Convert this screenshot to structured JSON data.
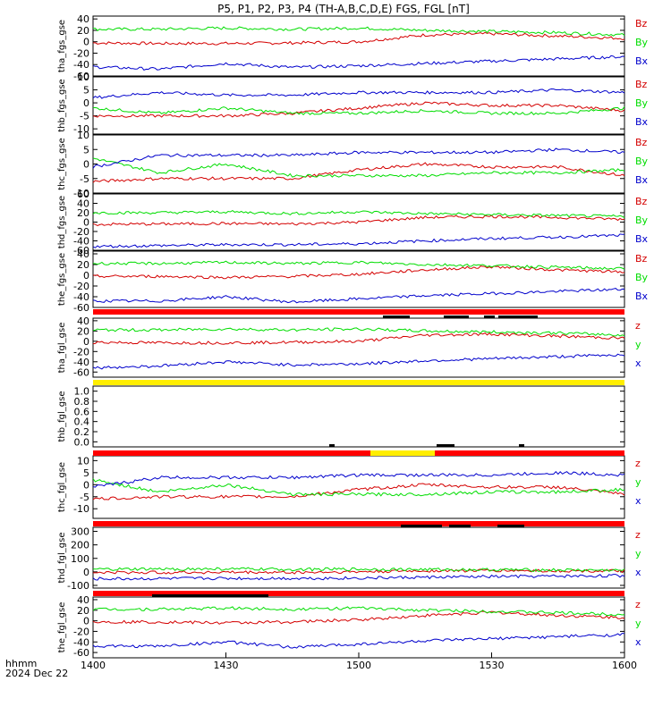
{
  "title": "P5, P1, P2, P3, P4 (TH-A,B,C,D,E) FGS, FGL [nT]",
  "footer": {
    "row1": "hhmm",
    "row2": "2024 Dec 22"
  },
  "colors": {
    "z": "#d40000",
    "y": "#00dd00",
    "x": "#0000cc",
    "red_bar": "#ff0000",
    "yellow_bar": "#ffee00",
    "black": "#000000"
  },
  "chart_data": {
    "type": "line",
    "x_axis": {
      "range": [
        "14:00",
        "16:00"
      ],
      "ticks": [
        "1400",
        "1430",
        "1500",
        "1530",
        "1600"
      ]
    },
    "panels": [
      {
        "ylabel": "tha_fgs_gse",
        "yrange": [
          -60,
          45
        ],
        "ticks": [
          "40",
          "20",
          "0",
          "-20",
          "-40",
          "-60"
        ],
        "legend": [
          "Bz",
          "By",
          "Bx"
        ],
        "series": [
          {
            "name": "Bz",
            "color": "z",
            "t": [
              0,
              15,
              30,
              45,
              60,
              75,
              90,
              105,
              120
            ],
            "values": [
              -2,
              -3,
              -3,
              -2,
              0,
              12,
              14,
              10,
              6
            ]
          },
          {
            "name": "By",
            "color": "y",
            "t": [
              0,
              15,
              30,
              45,
              60,
              75,
              90,
              105,
              120
            ],
            "values": [
              22,
              22,
              24,
              22,
              24,
              20,
              18,
              16,
              12
            ]
          },
          {
            "name": "Bx",
            "color": "x",
            "t": [
              0,
              15,
              30,
              45,
              60,
              75,
              90,
              105,
              120
            ],
            "values": [
              -44,
              -48,
              -38,
              -45,
              -42,
              -38,
              -34,
              -30,
              -26
            ]
          }
        ]
      },
      {
        "ylabel": "thb_fgs_gse",
        "yrange": [
          -12,
          10
        ],
        "ticks": [
          "10",
          "5",
          "0",
          "-5",
          "-10"
        ],
        "legend": [
          "Bz",
          "By",
          "Bx"
        ],
        "series": [
          {
            "name": "Bz",
            "color": "z",
            "t": [
              0,
              15,
              30,
              45,
              60,
              75,
              90,
              105,
              120
            ],
            "values": [
              -5,
              -5,
              -5,
              -4,
              -2,
              0,
              -1,
              -1,
              -3
            ]
          },
          {
            "name": "By",
            "color": "y",
            "t": [
              0,
              15,
              30,
              45,
              60,
              75,
              90,
              105,
              120
            ],
            "values": [
              -2,
              -4,
              -2,
              -4,
              -4,
              -3,
              -4,
              -4,
              -2
            ]
          },
          {
            "name": "Bx",
            "color": "x",
            "t": [
              0,
              15,
              30,
              45,
              60,
              75,
              90,
              105,
              120
            ],
            "values": [
              2,
              4,
              3,
              3,
              4,
              4,
              4,
              5,
              4
            ]
          }
        ]
      },
      {
        "ylabel": "thc_fgs_gse",
        "yrange": [
          -10,
          10
        ],
        "ticks": [
          "10",
          "5",
          "0",
          "-5",
          "-10"
        ],
        "legend": [
          "Bz",
          "By",
          "Bx"
        ],
        "series": [
          {
            "name": "Bz",
            "color": "z",
            "t": [
              0,
              15,
              30,
              45,
              60,
              75,
              90,
              105,
              120
            ],
            "values": [
              -6,
              -5,
              -5,
              -5,
              -2,
              0,
              -1,
              -1,
              -4
            ]
          },
          {
            "name": "By",
            "color": "y",
            "t": [
              0,
              15,
              30,
              45,
              60,
              75,
              90,
              105,
              120
            ],
            "values": [
              2,
              -3,
              0,
              -4,
              -4,
              -4,
              -3,
              -3,
              -2
            ]
          },
          {
            "name": "Bx",
            "color": "x",
            "t": [
              0,
              15,
              30,
              45,
              60,
              75,
              90,
              105,
              120
            ],
            "values": [
              -1,
              3,
              3,
              3,
              4,
              4,
              4,
              5,
              4
            ]
          }
        ]
      },
      {
        "ylabel": "thd_fgs_gse",
        "yrange": [
          -60,
          60
        ],
        "ticks": [
          "60",
          "40",
          "20",
          "0",
          "-20",
          "-40",
          "-60"
        ],
        "legend": [
          "Bz",
          "By",
          "Bx"
        ],
        "series": [
          {
            "name": "Bz",
            "color": "z",
            "t": [
              0,
              15,
              30,
              45,
              60,
              75,
              90,
              105,
              120
            ],
            "values": [
              -5,
              -4,
              -3,
              -4,
              0,
              10,
              12,
              10,
              6
            ]
          },
          {
            "name": "By",
            "color": "y",
            "t": [
              0,
              15,
              30,
              45,
              60,
              75,
              90,
              105,
              120
            ],
            "values": [
              20,
              20,
              22,
              18,
              22,
              18,
              16,
              14,
              12
            ]
          },
          {
            "name": "Bx",
            "color": "x",
            "t": [
              0,
              15,
              30,
              45,
              60,
              75,
              90,
              105,
              120
            ],
            "values": [
              -52,
              -50,
              -48,
              -48,
              -46,
              -40,
              -35,
              -32,
              -28
            ]
          }
        ]
      },
      {
        "ylabel": "the_fgs_gse",
        "yrange": [
          -60,
          45
        ],
        "ticks": [
          "40",
          "20",
          "0",
          "-20",
          "-40",
          "-60"
        ],
        "legend": [
          "Bz",
          "By",
          "Bx"
        ],
        "series": [
          {
            "name": "Bz",
            "color": "z",
            "t": [
              0,
              15,
              30,
              45,
              60,
              75,
              90,
              105,
              120
            ],
            "values": [
              -2,
              -2,
              -4,
              -2,
              2,
              10,
              16,
              10,
              6
            ]
          },
          {
            "name": "By",
            "color": "y",
            "t": [
              0,
              15,
              30,
              45,
              60,
              75,
              90,
              105,
              120
            ],
            "values": [
              22,
              22,
              24,
              22,
              24,
              20,
              18,
              15,
              12
            ]
          },
          {
            "name": "Bx",
            "color": "x",
            "t": [
              0,
              15,
              30,
              45,
              60,
              75,
              90,
              105,
              120
            ],
            "values": [
              -48,
              -48,
              -40,
              -50,
              -44,
              -38,
              -34,
              -30,
              -26
            ]
          }
        ]
      },
      {
        "ylabel": "tha_fgl_gse",
        "yrange": [
          -70,
          45
        ],
        "ticks": [
          "40",
          "20",
          "0",
          "-20",
          "-40",
          "-60"
        ],
        "legend": [
          "z",
          "y",
          "x"
        ],
        "series": [
          {
            "name": "z",
            "color": "z",
            "t": [
              0,
              15,
              30,
              45,
              60,
              75,
              90,
              105,
              120
            ],
            "values": [
              -2,
              -3,
              -3,
              -2,
              0,
              12,
              14,
              10,
              6
            ]
          },
          {
            "name": "y",
            "color": "y",
            "t": [
              0,
              15,
              30,
              45,
              60,
              75,
              90,
              105,
              120
            ],
            "values": [
              22,
              22,
              24,
              22,
              24,
              20,
              18,
              16,
              12
            ]
          },
          {
            "name": "x",
            "color": "x",
            "t": [
              0,
              15,
              30,
              45,
              60,
              75,
              90,
              105,
              120
            ],
            "values": [
              -52,
              -48,
              -40,
              -46,
              -44,
              -38,
              -34,
              -30,
              -26
            ]
          }
        ]
      },
      {
        "ylabel": "thb_fgl_gse",
        "yrange": [
          -0.1,
          1.1
        ],
        "ticks": [
          "1.0",
          "0.8",
          "0.6",
          "0.4",
          "0.2",
          "0.0"
        ],
        "legend": [],
        "series": []
      },
      {
        "ylabel": "thc_fgl_gse",
        "yrange": [
          -14,
          12
        ],
        "ticks": [
          "10",
          "5",
          "0",
          "-5",
          "-10"
        ],
        "legend": [
          "z",
          "y",
          "x"
        ],
        "series": [
          {
            "name": "z",
            "color": "z",
            "t": [
              0,
              15,
              30,
              45,
              60,
              75,
              90,
              105,
              120
            ],
            "values": [
              -6,
              -5,
              -5,
              -5,
              -2,
              0,
              -1,
              -1,
              -4
            ]
          },
          {
            "name": "y",
            "color": "y",
            "t": [
              0,
              15,
              30,
              45,
              60,
              75,
              90,
              105,
              120
            ],
            "values": [
              2,
              -3,
              0,
              -4,
              -4,
              -4,
              -3,
              -3,
              -2
            ]
          },
          {
            "name": "x",
            "color": "x",
            "t": [
              0,
              15,
              30,
              45,
              60,
              75,
              90,
              105,
              120
            ],
            "values": [
              -1,
              3,
              3,
              3,
              4,
              4,
              4,
              5,
              4
            ]
          }
        ]
      },
      {
        "ylabel": "thd_fgl_gse",
        "yrange": [
          -120,
          330
        ],
        "ticks": [
          "300",
          "200",
          "100",
          "0",
          "-100"
        ],
        "legend": [
          "z",
          "y",
          "x"
        ],
        "series": [
          {
            "name": "z",
            "color": "z",
            "t": [
              0,
              15,
              30,
              45,
              60,
              75,
              90,
              105,
              120
            ],
            "values": [
              -5,
              -4,
              -3,
              -4,
              0,
              8,
              10,
              8,
              6
            ]
          },
          {
            "name": "y",
            "color": "y",
            "t": [
              0,
              15,
              30,
              45,
              60,
              75,
              90,
              105,
              120
            ],
            "values": [
              18,
              20,
              22,
              18,
              20,
              18,
              16,
              14,
              12
            ]
          },
          {
            "name": "x",
            "color": "x",
            "t": [
              0,
              15,
              30,
              45,
              60,
              75,
              90,
              105,
              120
            ],
            "values": [
              -52,
              -50,
              -48,
              -48,
              -46,
              -40,
              -35,
              -32,
              -28
            ]
          }
        ]
      },
      {
        "ylabel": "the_fgl_gse",
        "yrange": [
          -70,
          45
        ],
        "ticks": [
          "40",
          "20",
          "0",
          "-20",
          "-40",
          "-60"
        ],
        "legend": [
          "z",
          "y",
          "x"
        ],
        "series": [
          {
            "name": "z",
            "color": "z",
            "t": [
              0,
              15,
              30,
              45,
              60,
              75,
              90,
              105,
              120
            ],
            "values": [
              -2,
              -2,
              -4,
              -2,
              2,
              10,
              16,
              10,
              6
            ]
          },
          {
            "name": "y",
            "color": "y",
            "t": [
              0,
              15,
              30,
              45,
              60,
              75,
              90,
              105,
              120
            ],
            "values": [
              22,
              22,
              24,
              22,
              24,
              20,
              18,
              15,
              12
            ]
          },
          {
            "name": "x",
            "color": "x",
            "t": [
              0,
              15,
              30,
              45,
              60,
              75,
              90,
              105,
              120
            ],
            "values": [
              -48,
              -48,
              -40,
              -50,
              -44,
              -38,
              -34,
              -30,
              -26
            ]
          }
        ]
      }
    ]
  }
}
